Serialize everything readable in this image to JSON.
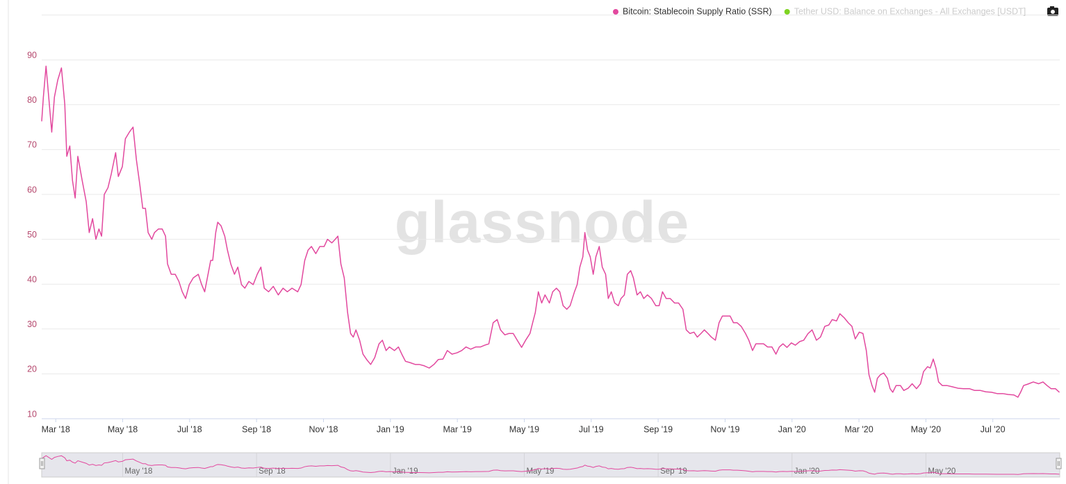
{
  "chart_data": {
    "type": "line",
    "watermark": "glassnode",
    "legend_position": "top-right",
    "grid": true,
    "ylim": [
      10,
      100
    ],
    "yticks": [
      10,
      20,
      30,
      40,
      50,
      60,
      70,
      80,
      90
    ],
    "xlim": [
      1.58,
      32.0
    ],
    "xticks": [
      {
        "value": 2,
        "label": "Mar '18"
      },
      {
        "value": 4,
        "label": "May '18"
      },
      {
        "value": 6,
        "label": "Jul '18"
      },
      {
        "value": 8,
        "label": "Sep '18"
      },
      {
        "value": 10,
        "label": "Nov '18"
      },
      {
        "value": 12,
        "label": "Jan '19"
      },
      {
        "value": 14,
        "label": "Mar '19"
      },
      {
        "value": 16,
        "label": "May '19"
      },
      {
        "value": 18,
        "label": "Jul '19"
      },
      {
        "value": 20,
        "label": "Sep '19"
      },
      {
        "value": 22,
        "label": "Nov '19"
      },
      {
        "value": 24,
        "label": "Jan '20"
      },
      {
        "value": 26,
        "label": "Mar '20"
      },
      {
        "value": 28,
        "label": "May '20"
      },
      {
        "value": 30,
        "label": "Jul '20"
      }
    ],
    "navigator_ticks": [
      {
        "value": 4,
        "label": "May '18"
      },
      {
        "value": 8,
        "label": "Sep '18"
      },
      {
        "value": 12,
        "label": "Jan '19"
      },
      {
        "value": 16,
        "label": "May '19"
      },
      {
        "value": 20,
        "label": "Sep '19"
      },
      {
        "value": 24,
        "label": "Jan '20"
      },
      {
        "value": 28,
        "label": "May '20"
      }
    ],
    "x": [
      1.58,
      1.63,
      1.71,
      1.79,
      1.88,
      1.96,
      2.06,
      2.17,
      2.27,
      2.33,
      2.42,
      2.5,
      2.58,
      2.66,
      2.79,
      2.91,
      3.0,
      3.1,
      3.2,
      3.29,
      3.37,
      3.45,
      3.56,
      3.66,
      3.79,
      3.87,
      3.99,
      4.08,
      4.2,
      4.31,
      4.41,
      4.51,
      4.6,
      4.68,
      4.76,
      4.87,
      4.95,
      5.07,
      5.18,
      5.28,
      5.34,
      5.45,
      5.57,
      5.68,
      5.78,
      5.88,
      5.99,
      6.11,
      6.26,
      6.36,
      6.45,
      6.53,
      6.63,
      6.69,
      6.78,
      6.84,
      6.94,
      7.05,
      7.13,
      7.23,
      7.34,
      7.44,
      7.55,
      7.65,
      7.77,
      7.9,
      8.02,
      8.13,
      8.23,
      8.36,
      8.5,
      8.65,
      8.79,
      8.92,
      9.06,
      9.23,
      9.33,
      9.44,
      9.54,
      9.64,
      9.77,
      9.89,
      10.02,
      10.12,
      10.25,
      10.35,
      10.43,
      10.52,
      10.62,
      10.72,
      10.81,
      10.89,
      10.97,
      11.08,
      11.18,
      11.29,
      11.41,
      11.53,
      11.66,
      11.76,
      11.87,
      11.97,
      12.12,
      12.24,
      12.34,
      12.45,
      12.59,
      12.74,
      12.86,
      13.01,
      13.16,
      13.3,
      13.43,
      13.57,
      13.7,
      13.84,
      13.99,
      14.13,
      14.26,
      14.4,
      14.55,
      14.69,
      14.82,
      14.94,
      15.07,
      15.19,
      15.29,
      15.42,
      15.54,
      15.67,
      15.79,
      15.92,
      16.04,
      16.17,
      16.25,
      16.33,
      16.42,
      16.52,
      16.62,
      16.75,
      16.85,
      16.96,
      17.06,
      17.16,
      17.27,
      17.37,
      17.5,
      17.58,
      17.66,
      17.75,
      17.81,
      17.89,
      17.97,
      18.06,
      18.14,
      18.24,
      18.33,
      18.43,
      18.51,
      18.6,
      18.7,
      18.81,
      18.89,
      18.99,
      19.08,
      19.18,
      19.26,
      19.37,
      19.47,
      19.57,
      19.68,
      19.8,
      19.93,
      20.03,
      20.13,
      20.24,
      20.36,
      20.49,
      20.61,
      20.74,
      20.84,
      20.95,
      21.07,
      21.17,
      21.28,
      21.38,
      21.49,
      21.59,
      21.71,
      21.82,
      21.92,
      22.05,
      22.15,
      22.25,
      22.36,
      22.48,
      22.61,
      22.71,
      22.82,
      22.92,
      23.04,
      23.15,
      23.27,
      23.4,
      23.52,
      23.62,
      23.73,
      23.85,
      23.98,
      24.1,
      24.23,
      24.35,
      24.48,
      24.6,
      24.73,
      24.85,
      24.98,
      25.1,
      25.2,
      25.33,
      25.43,
      25.56,
      25.68,
      25.79,
      25.89,
      26.01,
      26.12,
      26.22,
      26.3,
      26.39,
      26.47,
      26.55,
      26.64,
      26.74,
      26.85,
      26.93,
      27.01,
      27.11,
      27.24,
      27.34,
      27.47,
      27.59,
      27.72,
      27.84,
      27.93,
      28.05,
      28.13,
      28.22,
      28.3,
      28.38,
      28.49,
      28.63,
      28.8,
      28.96,
      29.13,
      29.3,
      29.46,
      29.63,
      29.79,
      29.96,
      30.13,
      30.3,
      30.46,
      30.63,
      30.75,
      30.83,
      30.92,
      31.04,
      31.21,
      31.37,
      31.5,
      31.62,
      31.74,
      31.87,
      31.99
    ],
    "series": [
      {
        "name": "Bitcoin: Stablecoin Supply Ratio (SSR)",
        "color": "#e2489e",
        "visible": true,
        "values": [
          76.3,
          81.7,
          88.6,
          81.7,
          73.9,
          81.7,
          85.5,
          88.2,
          80.1,
          68.5,
          70.8,
          63.1,
          59.2,
          68.5,
          63.1,
          58.4,
          51.5,
          54.6,
          50,
          52.3,
          50.7,
          60,
          61.5,
          64.6,
          69.3,
          64,
          66.2,
          72.4,
          73.9,
          75,
          67.7,
          62.3,
          56.9,
          56.9,
          51.5,
          50,
          51.5,
          52.3,
          52.3,
          50.7,
          44.5,
          42.2,
          42.2,
          40.6,
          38.3,
          36.8,
          39.9,
          41.4,
          42.2,
          39.9,
          38.3,
          41.4,
          45.3,
          45.3,
          51.5,
          53.8,
          53,
          50.7,
          47.6,
          44.5,
          42.2,
          43.8,
          39.9,
          39.1,
          40.6,
          39.9,
          42.2,
          43.8,
          39.1,
          38.3,
          39.5,
          37.6,
          39.1,
          38.3,
          39.1,
          38.3,
          39.9,
          45.3,
          47.6,
          48.4,
          46.8,
          48.4,
          48.4,
          50,
          49.2,
          50,
          50.7,
          44.5,
          41.4,
          33.7,
          29,
          28.2,
          29.8,
          27.5,
          24.4,
          23.2,
          22.1,
          23.6,
          26.7,
          27.5,
          25.2,
          26,
          25.2,
          26,
          24.4,
          22.8,
          22.5,
          22.1,
          22.1,
          21.8,
          21.3,
          22.1,
          23.2,
          23.3,
          25.2,
          24.4,
          24.7,
          25.2,
          26,
          25.5,
          26,
          26,
          26.4,
          26.7,
          31.4,
          32.1,
          29.8,
          28.7,
          29,
          29,
          27.5,
          25.9,
          27.5,
          29,
          31.4,
          33.7,
          38.3,
          35.8,
          37.6,
          35.8,
          38.3,
          39.1,
          38.3,
          35.2,
          34.4,
          35.2,
          38.3,
          39.9,
          43.8,
          46.1,
          51.5,
          47.6,
          46.1,
          42.2,
          46.1,
          48.4,
          43.8,
          42.2,
          36.8,
          38.3,
          35.8,
          35.2,
          36.8,
          37.6,
          42.2,
          43,
          41.4,
          37.6,
          38.3,
          36.8,
          37.6,
          36.8,
          35.2,
          35.2,
          38.3,
          36.8,
          36.8,
          35.8,
          35.8,
          34.4,
          29.8,
          29,
          29.3,
          28.2,
          29,
          29.8,
          29,
          28.2,
          27.5,
          31.4,
          32.9,
          32.9,
          32.9,
          31.4,
          31.4,
          30.6,
          29,
          27.5,
          25.2,
          26.7,
          26.7,
          26.7,
          26,
          26,
          24.4,
          26,
          26.7,
          25.9,
          26.9,
          26.4,
          27.2,
          27.5,
          29,
          29.8,
          27.5,
          28.2,
          30.6,
          30.9,
          32.1,
          31.8,
          33.4,
          32.5,
          31.4,
          30.6,
          27.8,
          29.3,
          29,
          25.2,
          19.8,
          17.4,
          15.9,
          19,
          19.8,
          20.2,
          19,
          16.7,
          15.9,
          17.4,
          17.4,
          16.3,
          16.8,
          17.8,
          16.7,
          17.8,
          20.5,
          21.6,
          21.3,
          23.3,
          21.3,
          18.2,
          17.4,
          17.4,
          17.1,
          16.8,
          16.7,
          16.7,
          16.3,
          16.3,
          16,
          15.9,
          15.6,
          15.6,
          15.4,
          15.3,
          14.8,
          15.9,
          17.4,
          17.7,
          18.2,
          17.8,
          18.2,
          17.4,
          16.7,
          16.7,
          15.9
        ]
      },
      {
        "name": "Tether USD: Balance on Exchanges - All Exchanges [USDT]",
        "color": "#7ed321",
        "visible": false
      }
    ]
  }
}
